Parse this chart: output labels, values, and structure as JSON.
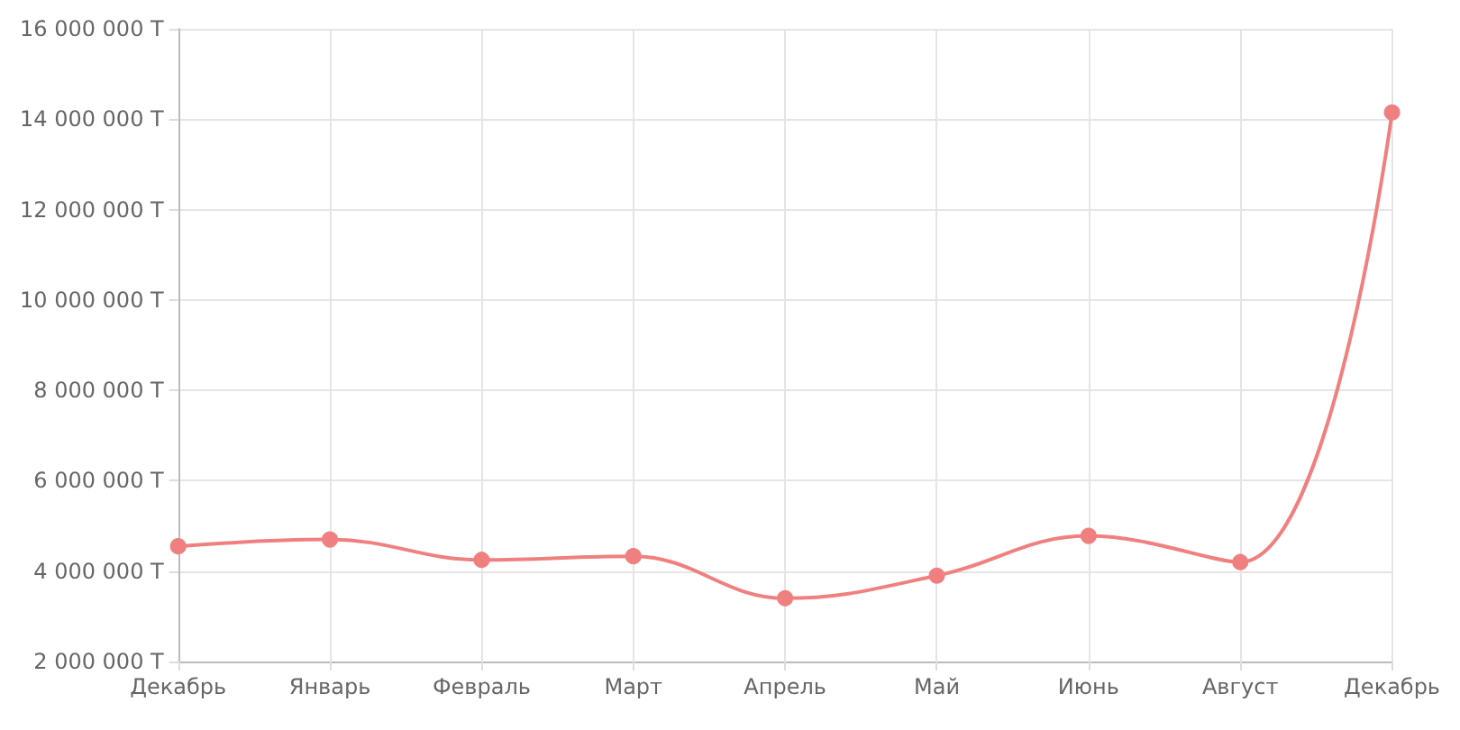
{
  "chart_data": {
    "type": "line",
    "categories": [
      "Декабрь",
      "Январь",
      "Февраль",
      "Март",
      "Апрель",
      "Май",
      "Июнь",
      "Август",
      "Декабрь"
    ],
    "series": [
      {
        "color": "#f08080",
        "values": [
          4550000,
          4700000,
          4250000,
          4330000,
          3400000,
          3900000,
          4780000,
          4200000,
          14150000
        ]
      }
    ],
    "ylim": [
      2000000,
      16000000
    ],
    "yticks": [
      {
        "value": 2000000,
        "label": "2 000 000 Т"
      },
      {
        "value": 4000000,
        "label": "4 000 000 Т"
      },
      {
        "value": 6000000,
        "label": "6 000 000 Т"
      },
      {
        "value": 8000000,
        "label": "8 000 000 Т"
      },
      {
        "value": 10000000,
        "label": "10 000 000 Т"
      },
      {
        "value": 12000000,
        "label": "12 000 000 Т"
      },
      {
        "value": 14000000,
        "label": "14 000 000 Т"
      },
      {
        "value": 16000000,
        "label": "16 000 000 Т"
      }
    ],
    "grid": true,
    "marker": "circle",
    "line_style": "solid"
  }
}
